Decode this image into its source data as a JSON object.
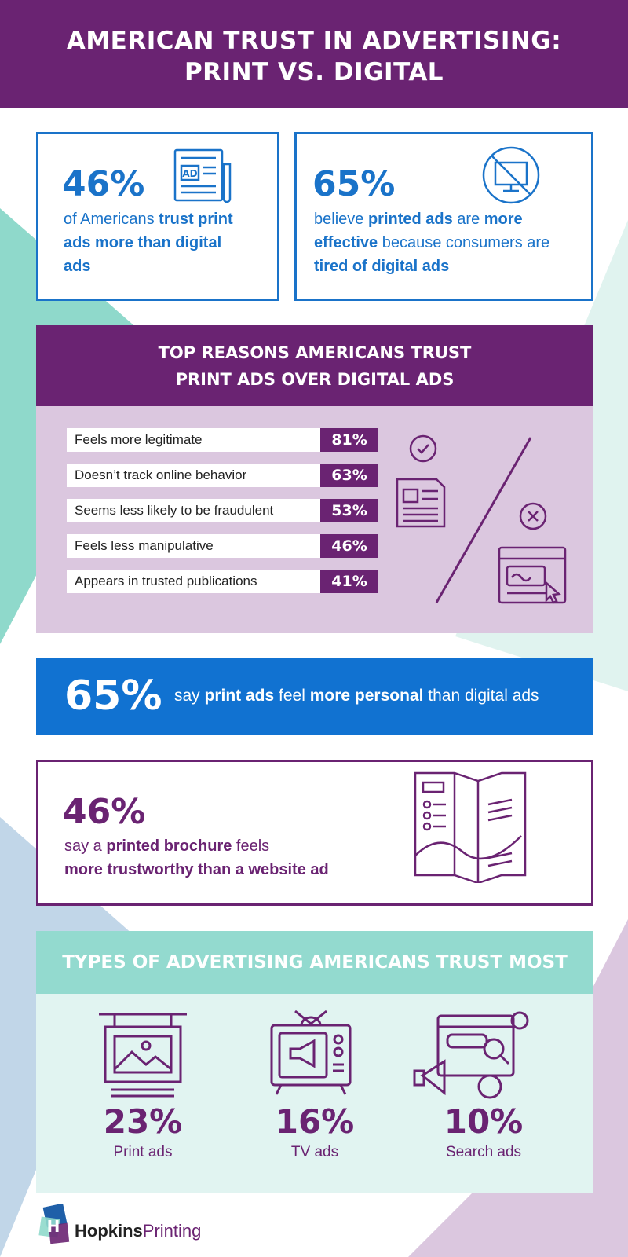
{
  "header": {
    "title_lines": [
      "AMERICAN TRUST IN ADVERTISING:",
      "PRINT VS. DIGITAL"
    ]
  },
  "stats": [
    {
      "value": "46%",
      "runs": [
        "of Americans ",
        "trust print ads more than digital ads"
      ]
    },
    {
      "value": "65%",
      "runs": [
        "believe ",
        "printed ads",
        " are ",
        "more effective",
        " because consumers are ",
        "tired of digital ads"
      ]
    }
  ],
  "reasons": {
    "title_lines": [
      "TOP REASONS AMERICANS TRUST",
      "PRINT ADS OVER DIGITAL ADS"
    ],
    "rows": [
      {
        "label": "Feels more legitimate",
        "percent": "81%"
      },
      {
        "label": "Doesn’t track online behavior",
        "percent": "63%"
      },
      {
        "label": "Seems less likely to be fraudulent",
        "percent": "53%"
      },
      {
        "label": "Feels less manipulative",
        "percent": "46%"
      },
      {
        "label": "Appears in trusted publications",
        "percent": "41%"
      }
    ]
  },
  "personal": {
    "value": "65%",
    "runs": [
      "say ",
      "print ads",
      " feel ",
      "more personal",
      " than digital ads"
    ]
  },
  "brochure": {
    "value": "46%",
    "runs": [
      "say a ",
      "printed brochure",
      " feels ",
      "more trustworthy than a website ad"
    ]
  },
  "types": {
    "title": "TYPES OF ADVERTISING AMERICANS TRUST MOST",
    "items": [
      {
        "percent": "23%",
        "label": "Print ads"
      },
      {
        "percent": "16%",
        "label": "TV ads"
      },
      {
        "percent": "10%",
        "label": "Search ads"
      }
    ]
  },
  "logo": {
    "runs": [
      "Hopkins",
      "Printing"
    ]
  }
}
